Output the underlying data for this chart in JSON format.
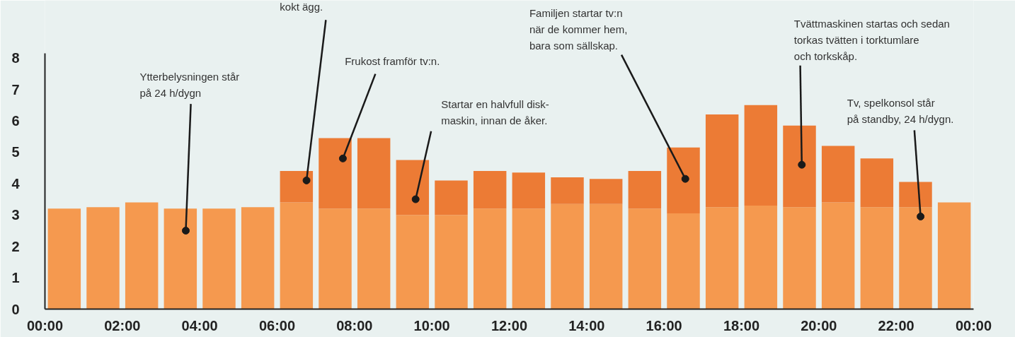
{
  "chart_data": {
    "type": "bar",
    "stacked": true,
    "x": [
      0.5,
      1.5,
      2.5,
      3.5,
      4.5,
      5.5,
      6.5,
      7.5,
      8.5,
      9.5,
      10.5,
      11.5,
      12.5,
      13.5,
      14.5,
      15.5,
      16.5,
      17.5,
      18.5,
      19.5,
      20.5,
      21.5,
      22.5,
      23.5
    ],
    "series": [
      {
        "color": "#f5994f",
        "values": [
          3.2,
          3.25,
          3.4,
          3.2,
          3.2,
          3.25,
          3.4,
          3.2,
          3.2,
          3.0,
          3.0,
          3.2,
          3.2,
          3.35,
          3.35,
          3.2,
          3.05,
          3.25,
          3.3,
          3.25,
          3.4,
          3.25,
          3.25,
          3.4
        ]
      },
      {
        "color": "#ec7b35",
        "values": [
          null,
          null,
          null,
          null,
          null,
          null,
          1.0,
          2.25,
          2.25,
          1.75,
          1.1,
          1.2,
          1.15,
          0.85,
          0.8,
          1.2,
          2.1,
          2.95,
          3.2,
          2.6,
          1.8,
          1.55,
          0.8,
          null
        ]
      }
    ],
    "xlim": [
      0,
      24
    ],
    "xticks": [
      {
        "value": 0,
        "label": "00:00"
      },
      {
        "value": 2,
        "label": "02:00"
      },
      {
        "value": 4,
        "label": "04:00"
      },
      {
        "value": 6,
        "label": "06:00"
      },
      {
        "value": 8,
        "label": "08:00"
      },
      {
        "value": 10,
        "label": "10:00"
      },
      {
        "value": 12,
        "label": "12:00"
      },
      {
        "value": 14,
        "label": "14:00"
      },
      {
        "value": 16,
        "label": "16:00"
      },
      {
        "value": 18,
        "label": "18:00"
      },
      {
        "value": 20,
        "label": "20:00"
      },
      {
        "value": 22,
        "label": "22:00"
      },
      {
        "value": 24,
        "label": "00:00"
      }
    ],
    "ylim": [
      0,
      8.15
    ],
    "yticks": [
      0,
      1,
      2,
      3,
      4,
      5,
      6,
      7,
      8
    ],
    "grid": false,
    "annotations": [
      {
        "text": "kokt ägg.",
        "x": 6.76,
        "y": 4.1
      },
      {
        "text": "Ytterbelysningen står\npå 24 h/dygn",
        "x": 3.64,
        "y": 2.5
      },
      {
        "text": "Frukost framför tv:n.",
        "x": 7.7,
        "y": 4.8
      },
      {
        "text": "Startar en halvfull disk-\nmaskin, innan de åker.",
        "x": 9.58,
        "y": 3.5
      },
      {
        "text": "Familjen startar tv:n\nnär de kommer hem,\nbara som sällskap.",
        "x": 16.55,
        "y": 4.15
      },
      {
        "text": "Tvättmaskinen startas och sedan\ntorkas tvätten i torktumlare\noch torkskåp.",
        "x": 19.56,
        "y": 4.6
      },
      {
        "text": "Tv, spelkonsol står\npå standby, 24 h/dygn.",
        "x": 22.63,
        "y": 2.95
      }
    ]
  }
}
